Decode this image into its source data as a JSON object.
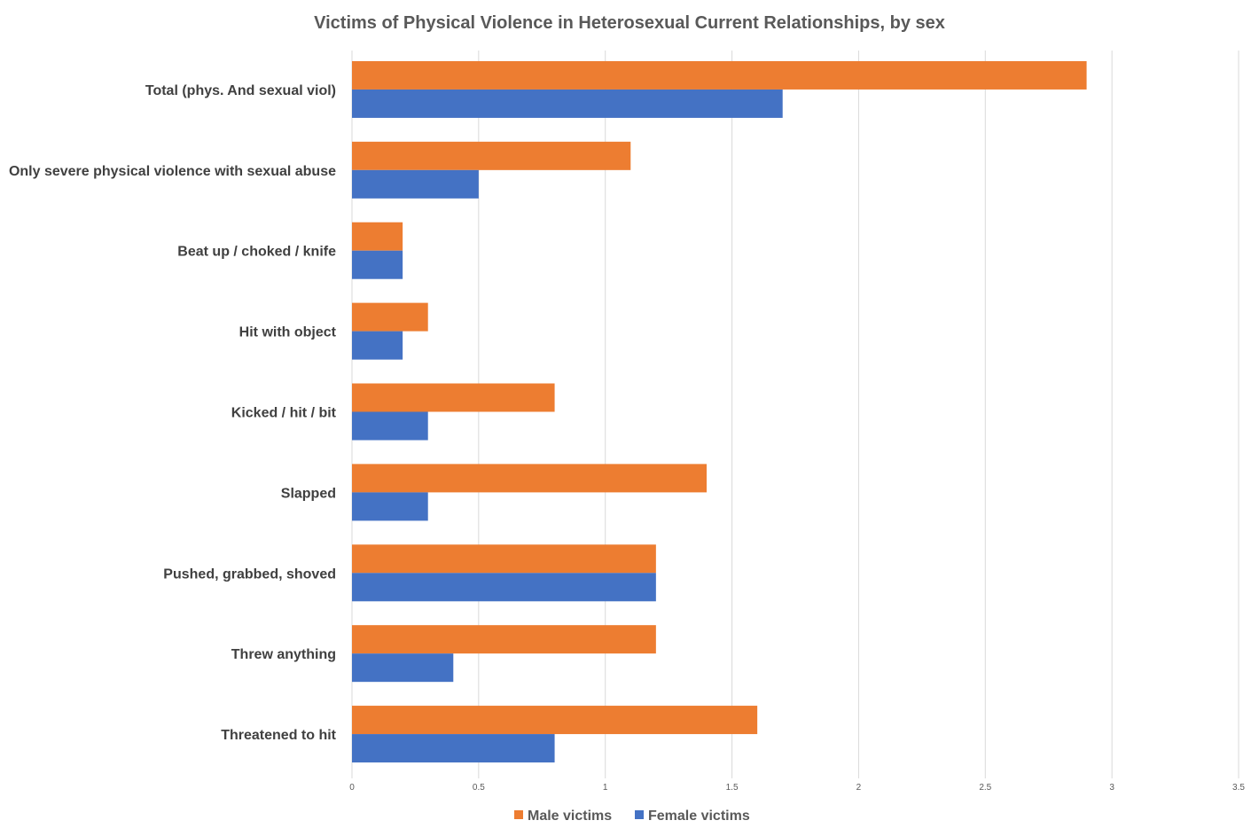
{
  "chart_data": {
    "type": "bar",
    "orientation": "horizontal",
    "title": "Victims of Physical Violence in Heterosexual Current Relationships, by sex",
    "xlabel": "",
    "ylabel": "",
    "xlim": [
      0,
      3.5
    ],
    "xticks": [
      "0",
      "0.5",
      "1",
      "1.5",
      "2",
      "2.5",
      "3",
      "3.5"
    ],
    "grid": true,
    "legend_position": "bottom",
    "categories": [
      "Total (phys. And sexual viol)",
      "Only severe physical violence with sexual abuse",
      "Beat up / choked / knife",
      "Hit with object",
      "Kicked / hit / bit",
      "Slapped",
      "Pushed, grabbed, shoved",
      "Threw anything",
      "Threatened to hit"
    ],
    "series": [
      {
        "name": "Male victims",
        "color": "#ED7D31",
        "values": [
          2.9,
          1.1,
          0.2,
          0.3,
          0.8,
          1.4,
          1.2,
          1.2,
          1.6
        ]
      },
      {
        "name": "Female victims",
        "color": "#4472C4",
        "values": [
          1.7,
          0.5,
          0.2,
          0.2,
          0.3,
          0.3,
          1.2,
          0.4,
          0.8
        ]
      }
    ]
  }
}
